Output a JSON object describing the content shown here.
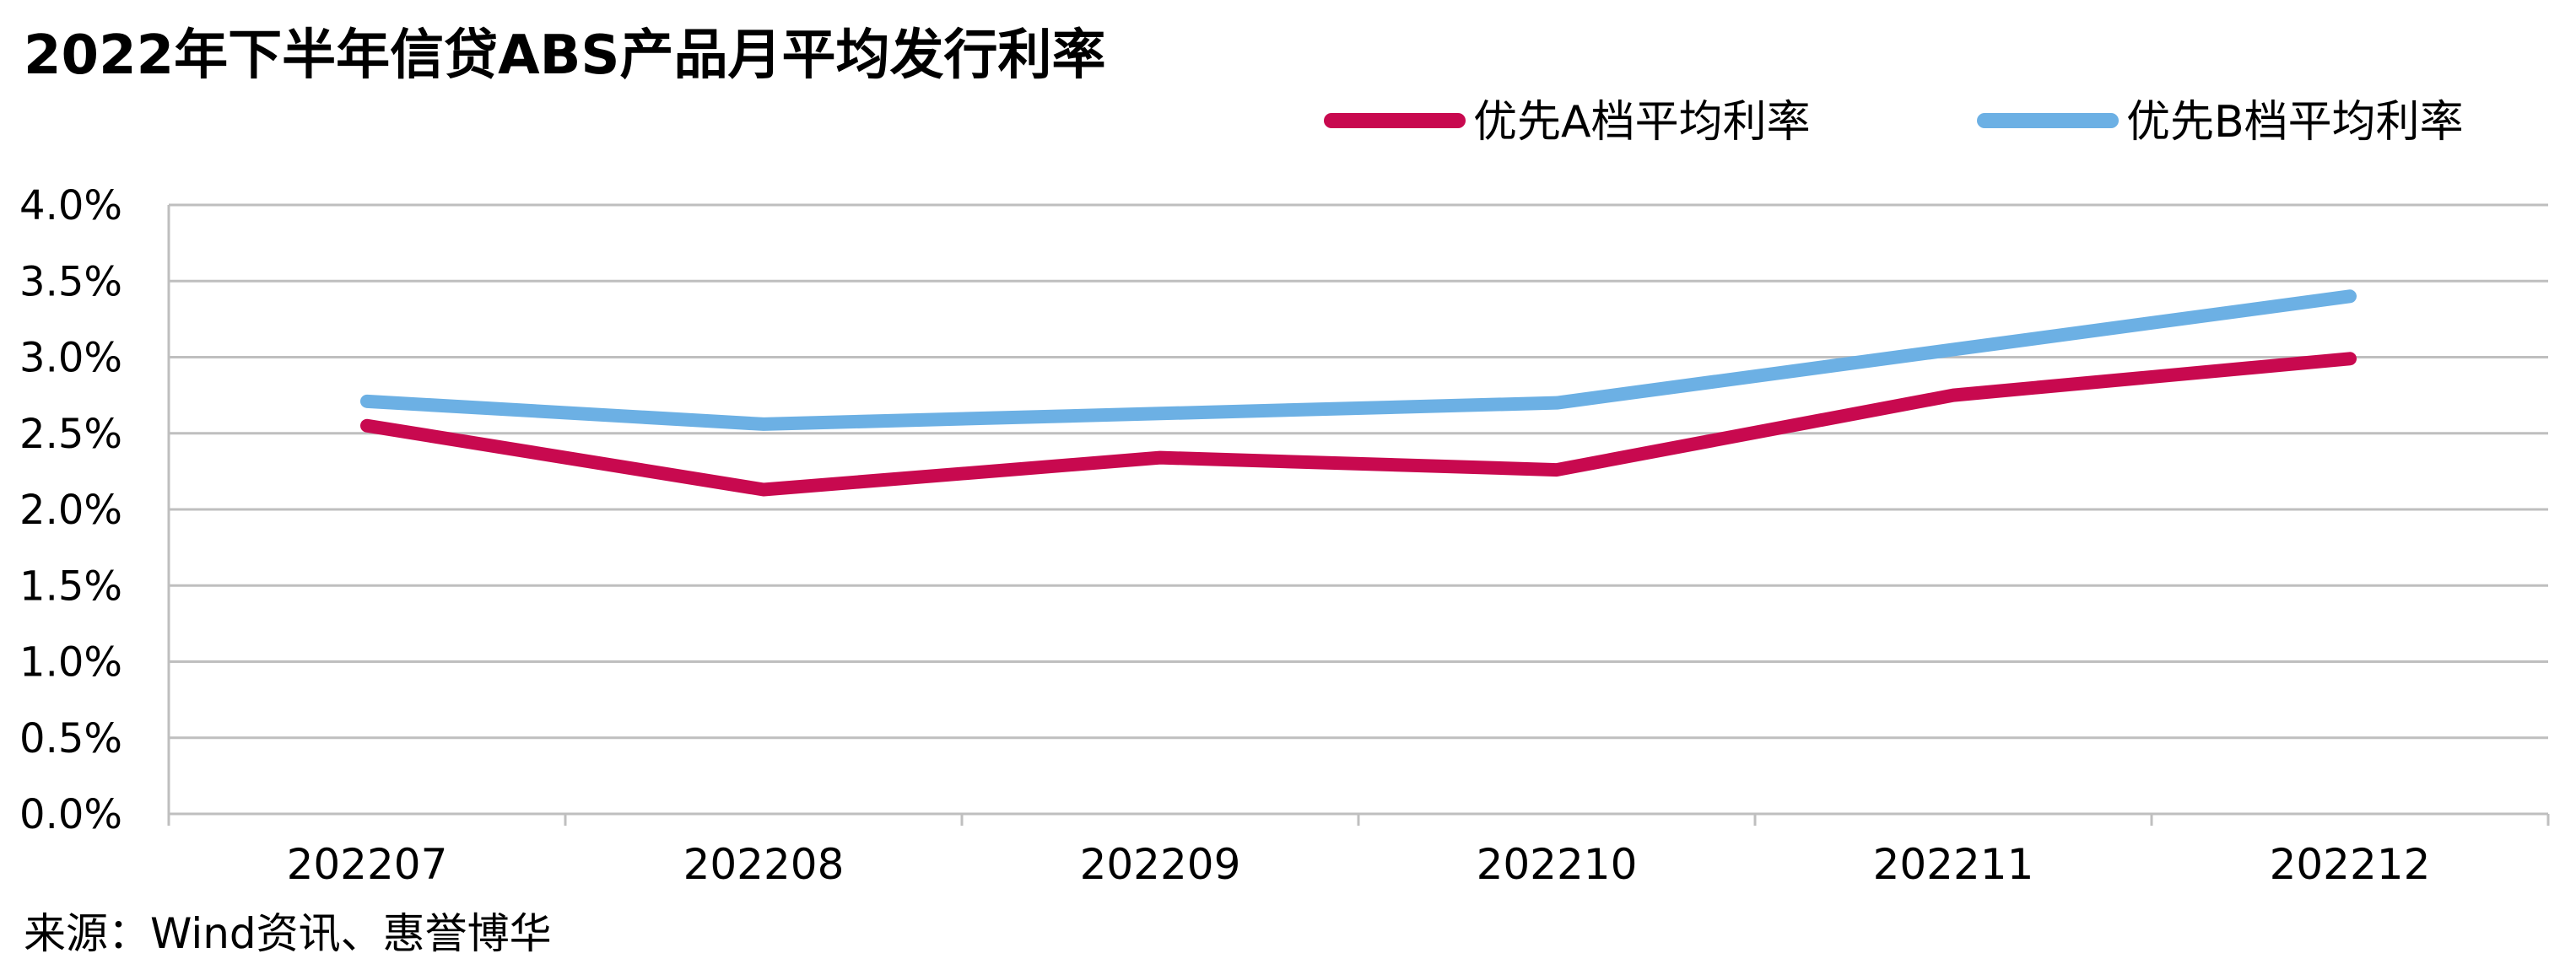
{
  "title": "2022年下半年信贷ABS产品月平均发行利率",
  "source": "来源：Wind资讯、惠誉博华",
  "chart_data": {
    "type": "line",
    "categories": [
      "202207",
      "202208",
      "202209",
      "202210",
      "202211",
      "202212"
    ],
    "series": [
      {
        "name": "优先A档平均利率",
        "color": "#C8094F",
        "values": [
          2.55,
          2.13,
          2.34,
          2.26,
          2.75,
          2.99
        ]
      },
      {
        "name": "优先B档平均利率",
        "color": "#6CB0E4",
        "values": [
          2.71,
          2.56,
          2.63,
          2.7,
          3.05,
          3.4
        ]
      }
    ],
    "ylim": [
      0,
      4.0
    ],
    "yticks": [
      "0.0%",
      "0.5%",
      "1.0%",
      "1.5%",
      "2.0%",
      "2.5%",
      "3.0%",
      "3.5%",
      "4.0%"
    ],
    "grid": true,
    "grid_color": "#BFBFBF",
    "legend_position": "top-right"
  }
}
